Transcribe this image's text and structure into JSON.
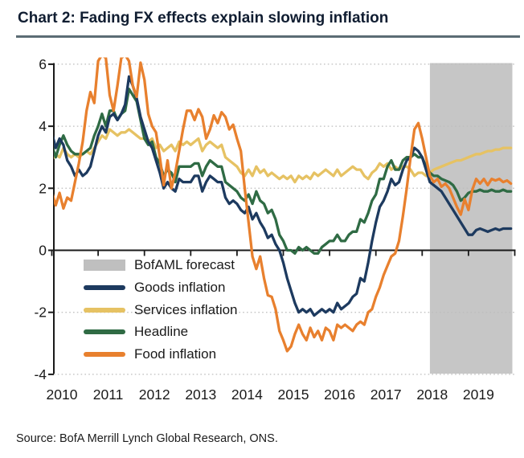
{
  "header": {
    "title": "Chart 2: Fading FX effects explain slowing inflation"
  },
  "source": "Source: BofA Merrill Lynch Global Research, ONS.",
  "colors": {
    "title_text": "#101d31",
    "title_rule": "#5b6c74",
    "axis_line": "#1a1a1a",
    "gridline": "#bdbdbd",
    "forecast_band": "#c6c6c6",
    "legend_forecast_swatch": "#bfbfbf",
    "goods": "#1d3a5f",
    "services": "#e6c263",
    "headline": "#2f6b44",
    "food": "#e8802e"
  },
  "legend": {
    "items": [
      {
        "key": "forecast",
        "label": "BofAML forecast",
        "swatch": "box",
        "color": "#bfbfbf"
      },
      {
        "key": "goods",
        "label": "Goods inflation",
        "swatch": "line",
        "color": "#1d3a5f"
      },
      {
        "key": "services",
        "label": "Services inflation",
        "swatch": "line",
        "color": "#e6c263"
      },
      {
        "key": "headline",
        "label": "Headline",
        "swatch": "line",
        "color": "#2f6b44"
      },
      {
        "key": "food",
        "label": "Food inflation",
        "swatch": "line",
        "color": "#e8802e"
      }
    ]
  },
  "axis": {
    "y_tick_labels": [
      "6",
      "4",
      "2",
      "0",
      "-2",
      "-4"
    ],
    "y_tick_values": [
      6,
      4,
      2,
      0,
      -2,
      -4
    ],
    "x_tick_labels": [
      "2010",
      "2011",
      "2012",
      "2013",
      "2014",
      "2015",
      "2016",
      "2017",
      "2018",
      "2019"
    ]
  },
  "chart_data": {
    "type": "line",
    "title": "Chart 2: Fading FX effects explain slowing inflation",
    "xlabel": "",
    "ylabel": "",
    "x_unit": "month",
    "x_start": "2010-01",
    "x_end": "2019-12",
    "ylim": [
      -4,
      6
    ],
    "grid": "dotted horizontal at 6,4,2,-2,-4; solid axis at 0",
    "legend_position": "inside lower-left",
    "forecast_band": {
      "label": "BofAML forecast",
      "start": "2018-03",
      "end": "2019-12",
      "color": "#c6c6c6"
    },
    "series": [
      {
        "name": "Goods inflation",
        "color": "#1d3a5f",
        "values": [
          3.8,
          3.3,
          3.6,
          3.4,
          2.9,
          2.7,
          2.4,
          2.6,
          2.4,
          2.5,
          2.7,
          3.2,
          3.7,
          4.0,
          3.8,
          4.3,
          4.4,
          4.2,
          4.4,
          4.7,
          5.6,
          5.3,
          4.9,
          4.3,
          3.9,
          3.5,
          3.3,
          2.9,
          2.5,
          2.0,
          2.2,
          2.0,
          1.9,
          2.3,
          2.2,
          2.2,
          2.2,
          2.4,
          2.4,
          1.9,
          2.2,
          2.4,
          2.3,
          2.2,
          2.2,
          1.7,
          1.5,
          1.6,
          1.5,
          1.3,
          1.2,
          1.4,
          1.0,
          1.2,
          0.9,
          0.7,
          0.4,
          0.5,
          0.2,
          0.0,
          -0.4,
          -0.9,
          -1.3,
          -1.7,
          -2.0,
          -1.9,
          -2.0,
          -1.9,
          -2.1,
          -2.0,
          -1.9,
          -2.0,
          -1.9,
          -2.0,
          -1.7,
          -1.9,
          -1.8,
          -1.7,
          -1.5,
          -1.4,
          -0.9,
          -1.0,
          -0.4,
          0.3,
          0.9,
          1.4,
          1.6,
          1.9,
          2.3,
          2.1,
          2.2,
          2.6,
          2.9,
          3.0,
          3.3,
          3.2,
          3.0,
          2.6,
          2.2,
          2.1,
          2.0,
          1.9,
          1.7,
          1.5,
          1.3,
          1.1,
          0.9,
          0.7,
          0.5,
          0.5,
          0.65,
          0.7,
          0.65,
          0.6,
          0.65,
          0.7,
          0.65,
          0.7,
          0.7,
          0.7
        ]
      },
      {
        "name": "Services inflation",
        "color": "#e6c263",
        "values": [
          2.9,
          3.1,
          3.0,
          3.3,
          3.1,
          3.0,
          3.1,
          3.0,
          3.1,
          3.2,
          3.1,
          3.3,
          3.5,
          3.7,
          3.6,
          3.9,
          3.8,
          3.7,
          3.8,
          3.8,
          3.9,
          3.8,
          3.7,
          3.6,
          3.6,
          3.5,
          3.6,
          3.3,
          3.4,
          3.2,
          3.3,
          3.4,
          3.2,
          3.5,
          3.4,
          3.5,
          3.4,
          3.5,
          3.6,
          3.2,
          3.4,
          3.5,
          3.4,
          3.3,
          3.4,
          3.0,
          2.9,
          2.8,
          2.7,
          2.5,
          2.4,
          2.6,
          2.4,
          2.7,
          2.5,
          2.6,
          2.4,
          2.5,
          2.4,
          2.3,
          2.4,
          2.3,
          2.4,
          2.2,
          2.4,
          2.3,
          2.4,
          2.3,
          2.5,
          2.4,
          2.5,
          2.6,
          2.5,
          2.4,
          2.6,
          2.4,
          2.5,
          2.6,
          2.7,
          2.6,
          2.6,
          2.4,
          2.3,
          2.5,
          2.6,
          2.8,
          2.7,
          2.8,
          2.6,
          2.7,
          2.6,
          2.7,
          2.7,
          2.6,
          2.4,
          2.5,
          2.5,
          2.4,
          2.5,
          2.6,
          2.65,
          2.7,
          2.75,
          2.8,
          2.85,
          2.9,
          2.9,
          2.95,
          3.0,
          3.05,
          3.1,
          3.1,
          3.15,
          3.2,
          3.2,
          3.25,
          3.25,
          3.3,
          3.3,
          3.3
        ]
      },
      {
        "name": "Headline",
        "color": "#2f6b44",
        "values": [
          3.4,
          3.0,
          3.4,
          3.7,
          3.4,
          3.2,
          3.1,
          3.1,
          3.1,
          3.2,
          3.3,
          3.7,
          4.0,
          4.4,
          4.0,
          4.5,
          4.5,
          4.2,
          4.4,
          4.5,
          5.2,
          5.0,
          4.8,
          4.2,
          3.6,
          3.4,
          3.5,
          3.0,
          2.8,
          2.4,
          2.6,
          2.5,
          2.2,
          2.7,
          2.7,
          2.7,
          2.7,
          2.8,
          2.8,
          2.4,
          2.7,
          2.9,
          2.8,
          2.7,
          2.7,
          2.2,
          2.1,
          2.0,
          1.9,
          1.7,
          1.6,
          1.8,
          1.5,
          1.9,
          1.6,
          1.5,
          1.2,
          1.3,
          1.0,
          0.5,
          0.3,
          0.0,
          0.0,
          -0.1,
          0.1,
          0.0,
          0.1,
          0.0,
          -0.1,
          -0.1,
          0.1,
          0.2,
          0.3,
          0.3,
          0.5,
          0.3,
          0.3,
          0.5,
          0.6,
          0.6,
          1.0,
          0.9,
          1.2,
          1.6,
          1.8,
          2.3,
          2.3,
          2.7,
          2.9,
          2.6,
          2.6,
          2.9,
          3.0,
          3.0,
          3.1,
          3.0,
          3.0,
          2.7,
          2.5,
          2.4,
          2.4,
          2.3,
          2.25,
          2.2,
          2.1,
          1.9,
          1.6,
          1.7,
          1.85,
          1.9,
          1.9,
          1.95,
          1.9,
          1.9,
          1.95,
          1.9,
          1.9,
          1.95,
          1.9,
          1.9
        ]
      },
      {
        "name": "Food inflation",
        "color": "#e8802e",
        "values": [
          1.9,
          1.45,
          1.85,
          1.35,
          1.7,
          1.6,
          2.2,
          2.8,
          3.5,
          4.5,
          5.1,
          4.75,
          6.1,
          6.3,
          6.2,
          5.0,
          4.5,
          5.3,
          6.2,
          6.3,
          6.1,
          5.3,
          4.95,
          6.05,
          5.5,
          4.4,
          4.0,
          3.8,
          3.0,
          2.1,
          2.9,
          2.0,
          2.5,
          3.2,
          3.9,
          4.5,
          4.5,
          4.2,
          4.55,
          4.3,
          3.6,
          3.9,
          4.35,
          4.1,
          4.45,
          4.3,
          3.9,
          4.05,
          3.6,
          3.2,
          2.0,
          0.9,
          -0.2,
          -0.6,
          -0.2,
          -0.9,
          -1.45,
          -1.5,
          -1.9,
          -2.6,
          -2.9,
          -3.25,
          -3.1,
          -2.7,
          -2.4,
          -2.7,
          -2.9,
          -2.5,
          -2.8,
          -2.6,
          -2.9,
          -2.5,
          -2.6,
          -2.9,
          -2.4,
          -2.5,
          -2.4,
          -2.5,
          -2.6,
          -2.4,
          -2.3,
          -2.4,
          -2.0,
          -1.9,
          -1.5,
          -1.2,
          -0.8,
          -0.5,
          -0.2,
          -0.1,
          0.3,
          1.1,
          2.0,
          3.0,
          3.9,
          4.1,
          3.6,
          3.0,
          2.4,
          2.2,
          2.3,
          2.05,
          2.15,
          2.0,
          1.7,
          1.4,
          1.15,
          1.65,
          1.3,
          1.95,
          2.3,
          2.15,
          2.3,
          2.1,
          2.3,
          2.25,
          2.3,
          2.2,
          2.25,
          2.15
        ]
      }
    ]
  }
}
